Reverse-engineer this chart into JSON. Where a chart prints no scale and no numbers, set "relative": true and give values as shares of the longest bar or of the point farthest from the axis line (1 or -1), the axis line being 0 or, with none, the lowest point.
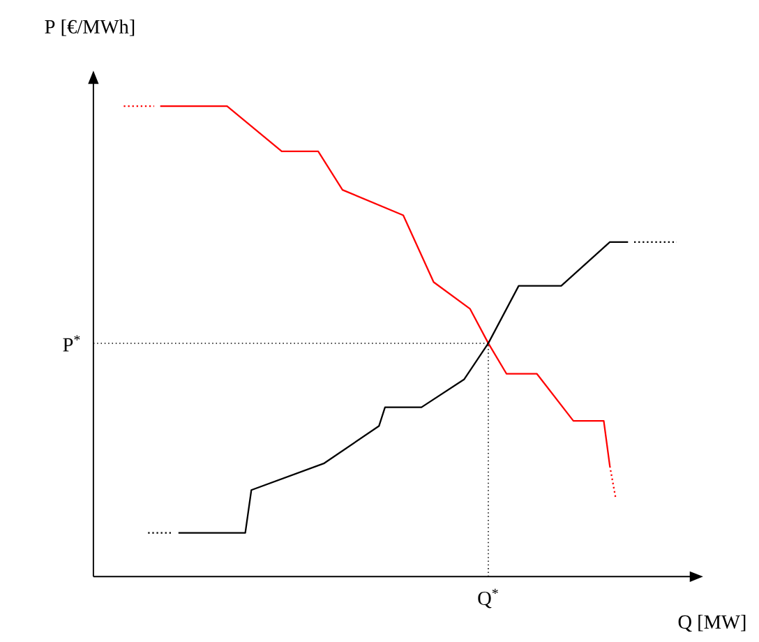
{
  "chart_data": {
    "type": "line",
    "relative": true,
    "xlabel": "Q [MW]",
    "ylabel": "P [€/MWh]",
    "categories": [
      null,
      null,
      null,
      null,
      null,
      null,
      null,
      null,
      null,
      null,
      null,
      null,
      null,
      null,
      null,
      null,
      null,
      null,
      null,
      null,
      null,
      null,
      null,
      null,
      null,
      null,
      null,
      null,
      null,
      null,
      null,
      null,
      null,
      null,
      null,
      null,
      null,
      null,
      null,
      null,
      null,
      null,
      null,
      null,
      null,
      null,
      null,
      null,
      null,
      null,
      null,
      null,
      null,
      null,
      null,
      null,
      null,
      null,
      null,
      null,
      null,
      null,
      null,
      null,
      null,
      null,
      null,
      null,
      null,
      null,
      null,
      null,
      null,
      null,
      null,
      null,
      null,
      null,
      null,
      null,
      null,
      null,
      null,
      null,
      null,
      null,
      null,
      null,
      null,
      null,
      null,
      null,
      null,
      null,
      null,
      null,
      null
    ],
    "series": [
      {
        "color": "#ff0000",
        "values": [
          null,
          null,
          null,
          null,
          null,
          null,
          null,
          null,
          null,
          null,
          null,
          1.0,
          null,
          null,
          null,
          null,
          null,
          null,
          null,
          null,
          null,
          null,
          1.0,
          null,
          null,
          null,
          null,
          null,
          null,
          null,
          null,
          0.904,
          null,
          null,
          null,
          null,
          null,
          0.904,
          null,
          null,
          null,
          0.822,
          null,
          null,
          null,
          null,
          null,
          null,
          null,
          null,
          null,
          0.768,
          null,
          null,
          null,
          null,
          0.626,
          null,
          null,
          null,
          null,
          null,
          0.569,
          null,
          null,
          0.496,
          null,
          null,
          0.431,
          null,
          null,
          null,
          null,
          0.431,
          null,
          null,
          null,
          null,
          null,
          0.331,
          null,
          null,
          null,
          null,
          0.331,
          0.235,
          null,
          null,
          null,
          null,
          null,
          null,
          null,
          null,
          null,
          null,
          null
        ]
      },
      {
        "color": "#ff0000",
        "line_style": "dotted",
        "values": [
          null,
          null,
          null,
          null,
          null,
          1.0,
          null,
          null,
          null,
          null,
          1.0,
          null,
          null,
          null,
          null,
          null,
          null,
          null,
          null,
          null,
          null,
          null,
          null,
          null,
          null,
          null,
          null,
          null,
          null,
          null,
          null,
          null,
          null,
          null,
          null,
          null,
          null,
          null,
          null,
          null,
          null,
          null,
          null,
          null,
          null,
          null,
          null,
          null,
          null,
          null,
          null,
          null,
          null,
          null,
          null,
          null,
          null,
          null,
          null,
          null,
          null,
          null,
          null,
          null,
          null,
          null,
          null,
          null,
          null,
          null,
          null,
          null,
          null,
          null,
          null,
          null,
          null,
          null,
          null,
          null,
          null,
          null,
          null,
          null,
          null,
          null,
          null,
          null,
          null,
          null,
          null,
          null,
          null,
          null,
          null,
          null,
          null
        ]
      },
      {
        "color": "#ff0000",
        "line_style": "dotted",
        "values": [
          null,
          null,
          null,
          null,
          null,
          null,
          null,
          null,
          null,
          null,
          null,
          null,
          null,
          null,
          null,
          null,
          null,
          null,
          null,
          null,
          null,
          null,
          null,
          null,
          null,
          null,
          null,
          null,
          null,
          null,
          null,
          null,
          null,
          null,
          null,
          null,
          null,
          null,
          null,
          null,
          null,
          null,
          null,
          null,
          null,
          null,
          null,
          null,
          null,
          null,
          null,
          null,
          null,
          null,
          null,
          null,
          null,
          null,
          null,
          null,
          null,
          null,
          null,
          null,
          null,
          null,
          null,
          null,
          null,
          null,
          null,
          null,
          null,
          null,
          null,
          null,
          null,
          null,
          null,
          null,
          null,
          null,
          null,
          null,
          null,
          0.235,
          0.164,
          null,
          null,
          null,
          null,
          null,
          null,
          null,
          null,
          null,
          null
        ]
      },
      {
        "color": "#000000",
        "values": [
          null,
          null,
          null,
          null,
          null,
          null,
          null,
          null,
          null,
          null,
          null,
          null,
          null,
          null,
          0.093,
          null,
          null,
          null,
          null,
          null,
          null,
          null,
          null,
          null,
          null,
          0.093,
          0.184,
          null,
          null,
          null,
          null,
          null,
          null,
          null,
          null,
          null,
          null,
          null,
          0.241,
          null,
          null,
          null,
          null,
          null,
          null,
          null,
          null,
          0.32,
          0.36,
          null,
          null,
          null,
          null,
          null,
          0.36,
          null,
          null,
          null,
          null,
          null,
          null,
          0.419,
          null,
          null,
          null,
          0.496,
          null,
          null,
          null,
          null,
          0.618,
          null,
          null,
          null,
          null,
          null,
          null,
          0.618,
          null,
          null,
          null,
          null,
          null,
          null,
          null,
          0.711,
          null,
          null,
          0.711,
          null,
          null,
          null,
          null,
          null,
          null,
          null,
          null
        ]
      },
      {
        "color": "#000000",
        "line_style": "dotted",
        "values": [
          null,
          null,
          null,
          null,
          null,
          null,
          null,
          null,
          null,
          0.093,
          null,
          null,
          null,
          0.093,
          null,
          null,
          null,
          null,
          null,
          null,
          null,
          null,
          null,
          null,
          null,
          null,
          null,
          null,
          null,
          null,
          null,
          null,
          null,
          null,
          null,
          null,
          null,
          null,
          null,
          null,
          null,
          null,
          null,
          null,
          null,
          null,
          null,
          null,
          null,
          null,
          null,
          null,
          null,
          null,
          null,
          null,
          null,
          null,
          null,
          null,
          null,
          null,
          null,
          null,
          null,
          null,
          null,
          null,
          null,
          null,
          null,
          null,
          null,
          null,
          null,
          null,
          null,
          null,
          null,
          null,
          null,
          null,
          null,
          null,
          null,
          null,
          null,
          null,
          null,
          null,
          null,
          null,
          null,
          null,
          null,
          null,
          null
        ]
      },
      {
        "color": "#000000",
        "line_style": "dotted",
        "values": [
          null,
          null,
          null,
          null,
          null,
          null,
          null,
          null,
          null,
          null,
          null,
          null,
          null,
          null,
          null,
          null,
          null,
          null,
          null,
          null,
          null,
          null,
          null,
          null,
          null,
          null,
          null,
          null,
          null,
          null,
          null,
          null,
          null,
          null,
          null,
          null,
          null,
          null,
          null,
          null,
          null,
          null,
          null,
          null,
          null,
          null,
          null,
          null,
          null,
          null,
          null,
          null,
          null,
          null,
          null,
          null,
          null,
          null,
          null,
          null,
          null,
          null,
          null,
          null,
          null,
          null,
          null,
          null,
          null,
          null,
          null,
          null,
          null,
          null,
          null,
          null,
          null,
          null,
          null,
          null,
          null,
          null,
          null,
          null,
          null,
          null,
          null,
          null,
          null,
          0.711,
          null,
          null,
          null,
          null,
          null,
          null,
          0.711
        ]
      }
    ],
    "ref_lines": [
      {
        "axis": "y",
        "value": 0.496,
        "label": "P$^{*}$",
        "line_style": "dotted",
        "color": "#000000"
      }
    ],
    "annotations": [
      "Q$^{*}$"
    ]
  }
}
